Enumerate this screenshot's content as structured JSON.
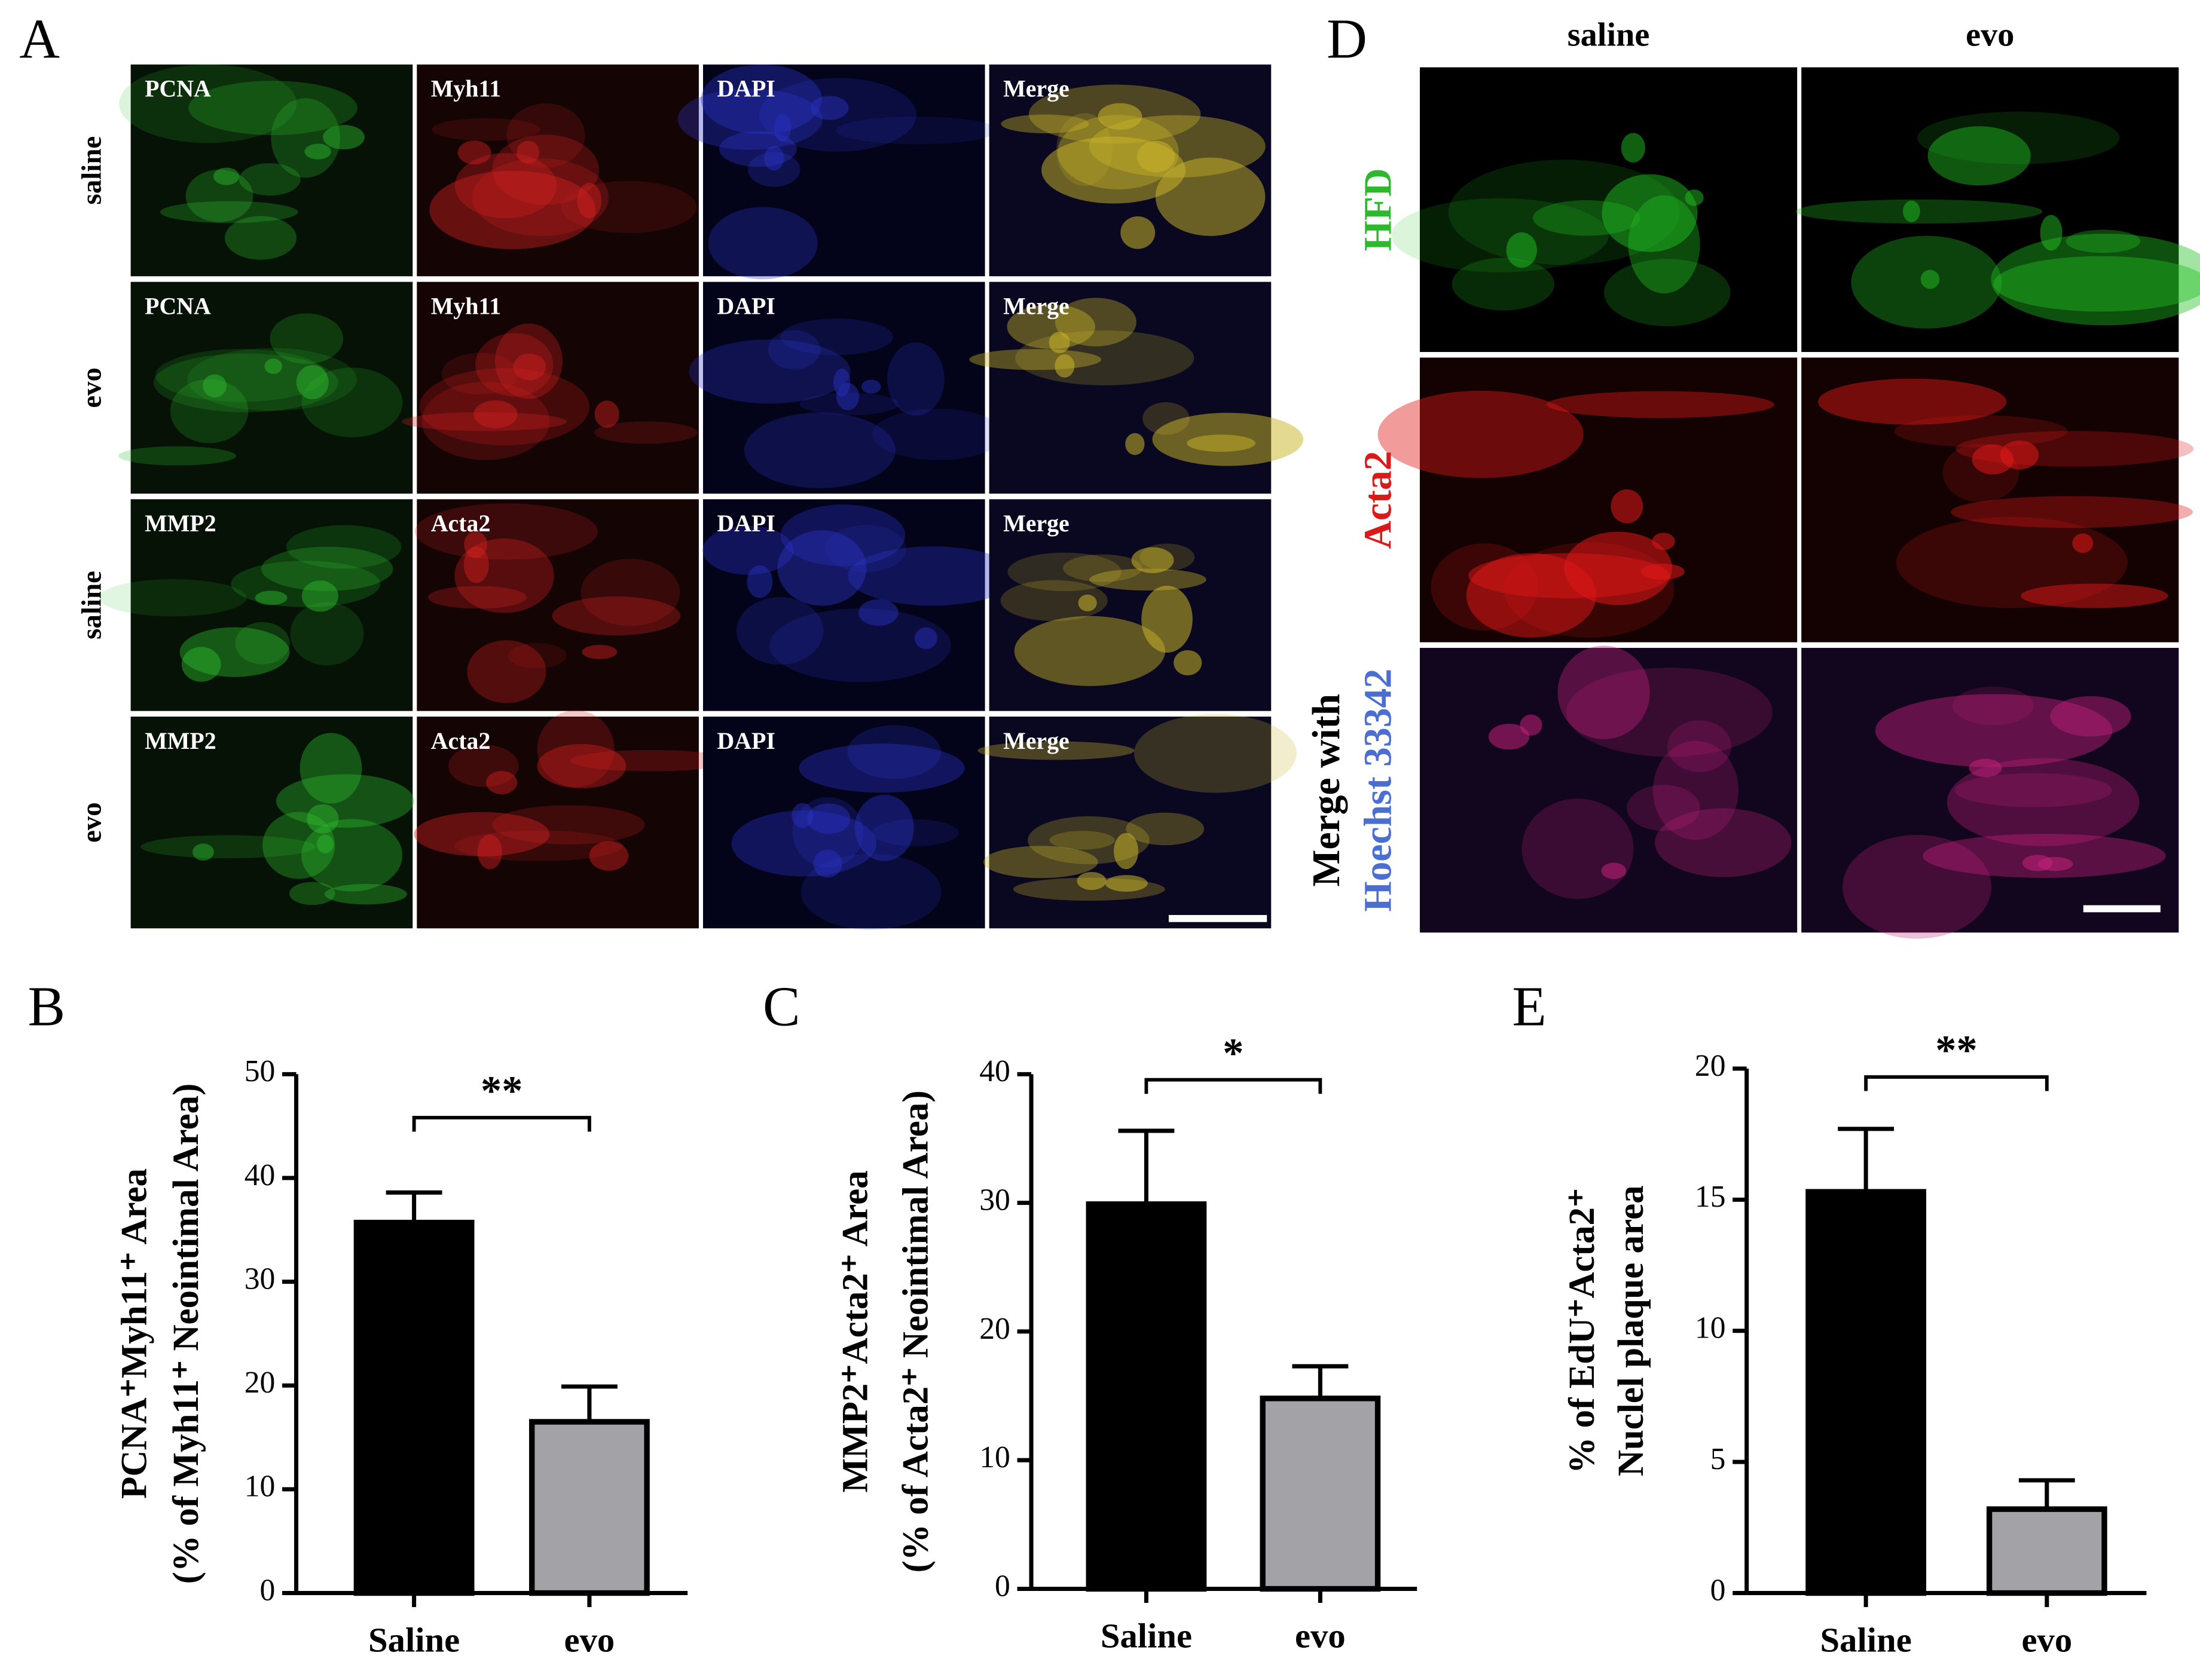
{
  "panel_labels": [
    "A",
    "B",
    "C",
    "D",
    "E"
  ],
  "panel_a": {
    "rows": [
      {
        "label": "saline",
        "channels": [
          "PCNA",
          "Myh11",
          "DAPI",
          "Merge"
        ]
      },
      {
        "label": "evo",
        "channels": [
          "PCNA",
          "Myh11",
          "DAPI",
          "Merge"
        ]
      },
      {
        "label": "saline",
        "channels": [
          "MMP2",
          "Acta2",
          "DAPI",
          "Merge"
        ]
      },
      {
        "label": "evo",
        "channels": [
          "MMP2",
          "Acta2",
          "DAPI",
          "Merge"
        ]
      }
    ]
  },
  "panel_d": {
    "columns": [
      "saline",
      "evo"
    ],
    "rows": [
      [
        "HFD"
      ],
      [
        "Acta2"
      ],
      [
        "Merge with",
        "Hoechst 33342"
      ]
    ]
  },
  "chart_data": [
    {
      "type": "bar",
      "categories": [
        "Saline",
        "evo"
      ],
      "values": [
        35.7,
        16.5
      ],
      "errors": [
        2.9,
        3.4
      ],
      "colors": [
        "#000000",
        "#a3a3a7"
      ],
      "ylim": [
        0,
        50
      ],
      "yticks": [
        0,
        10,
        20,
        30,
        40,
        50
      ],
      "ylabel": [
        "PCNA⁺Myh11⁺ Area",
        "(% of Myh11⁺ Neointimal Area)"
      ],
      "significance": "**"
    },
    {
      "type": "bar",
      "categories": [
        "Saline",
        "evo"
      ],
      "values": [
        29.9,
        14.8
      ],
      "errors": [
        5.7,
        2.5
      ],
      "colors": [
        "#000000",
        "#a3a3a7"
      ],
      "ylim": [
        0,
        40
      ],
      "yticks": [
        0,
        10,
        20,
        30,
        40
      ],
      "ylabel": [
        "MMP2⁺Acta2⁺ Area",
        "(% of Acta2⁺ Neointimal Area)"
      ],
      "significance": "*"
    },
    {
      "type": "bar",
      "categories": [
        "Saline",
        "evo"
      ],
      "values": [
        15.3,
        3.2
      ],
      "errors": [
        2.4,
        1.1
      ],
      "colors": [
        "#000000",
        "#a3a3a7"
      ],
      "ylim": [
        0,
        20
      ],
      "yticks": [
        0,
        5,
        10,
        15,
        20
      ],
      "ylabel": [
        "% of EdU⁺Acta2⁺",
        "Nuclel plaque area"
      ],
      "significance": "**"
    }
  ]
}
